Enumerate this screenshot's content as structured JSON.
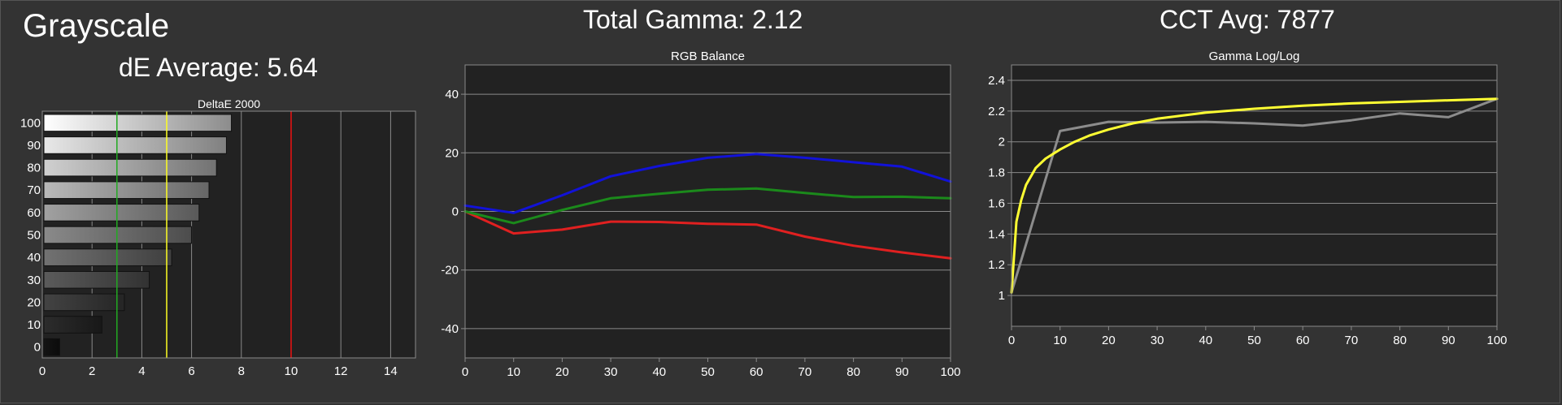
{
  "page": {
    "title": "Grayscale",
    "subtitle": "dE Average: 5.64",
    "gamma_heading": "Total Gamma: 2.12",
    "cct_heading": "CCT Avg: 7877"
  },
  "colors": {
    "background": "#333333",
    "plot_background": "#222222",
    "grid": "#8a8a8a",
    "red": "#e02020",
    "green": "#1b8a1b",
    "blue": "#1212d8",
    "yellow": "#ffff33",
    "gray_line": "#8c8c8c",
    "green_threshold": "#22aa22",
    "yellow_threshold": "#ffff22",
    "red_threshold": "#ee1111"
  },
  "chart_data": [
    {
      "type": "bar",
      "orientation": "horizontal",
      "title": "DeltaE 2000",
      "categories": [
        "100",
        "90",
        "80",
        "70",
        "60",
        "50",
        "40",
        "30",
        "20",
        "10",
        "0"
      ],
      "values": [
        7.6,
        7.4,
        7.0,
        6.7,
        6.3,
        6.0,
        5.2,
        4.3,
        3.3,
        2.4,
        0.7
      ],
      "xlim": [
        0,
        15
      ],
      "xticks": [
        "0",
        "2",
        "4",
        "6",
        "8",
        "10",
        "12",
        "14"
      ],
      "threshold_lines": [
        3,
        5,
        10
      ],
      "grid": true
    },
    {
      "type": "line",
      "title": "RGB Balance",
      "x": [
        0,
        10,
        20,
        30,
        40,
        50,
        60,
        70,
        80,
        90,
        100
      ],
      "series": [
        {
          "color": "red",
          "values": [
            0,
            -7.5,
            -6.2,
            -3.5,
            -3.6,
            -4.2,
            -4.5,
            -8.6,
            -11.7,
            -14.0,
            -16.0
          ]
        },
        {
          "color": "green",
          "values": [
            0,
            -4.0,
            0.5,
            4.5,
            6.0,
            7.4,
            7.8,
            6.3,
            4.9,
            5.0,
            4.5
          ]
        },
        {
          "color": "blue",
          "values": [
            2.0,
            -0.5,
            5.5,
            12.0,
            15.5,
            18.3,
            19.6,
            18.3,
            16.8,
            15.3,
            10.2
          ]
        }
      ],
      "xlim": [
        0,
        100
      ],
      "ylim": [
        -50,
        50
      ],
      "xticks": [
        "0",
        "10",
        "20",
        "30",
        "40",
        "50",
        "60",
        "70",
        "80",
        "90",
        "100"
      ],
      "yticks": [
        "40",
        "20",
        "0",
        "-20",
        "-40"
      ],
      "grid": true
    },
    {
      "type": "line",
      "title": "Gamma Log/Log",
      "x": [
        0,
        10,
        20,
        30,
        40,
        50,
        60,
        70,
        80,
        90,
        100
      ],
      "series": [
        {
          "color": "gray_line",
          "x": [
            0,
            10,
            20,
            30,
            40,
            50,
            60,
            70,
            80,
            90,
            100
          ],
          "values": [
            1.02,
            2.07,
            2.13,
            2.125,
            2.13,
            2.12,
            2.105,
            2.14,
            2.185,
            2.16,
            2.28
          ]
        },
        {
          "color": "yellow",
          "x": [
            0,
            1,
            2,
            3,
            5,
            7,
            10,
            13,
            16,
            20,
            25,
            30,
            40,
            50,
            60,
            70,
            80,
            90,
            100
          ],
          "values": [
            1.02,
            1.48,
            1.62,
            1.72,
            1.83,
            1.89,
            1.95,
            2.0,
            2.04,
            2.08,
            2.12,
            2.15,
            2.19,
            2.215,
            2.235,
            2.25,
            2.26,
            2.27,
            2.28
          ]
        }
      ],
      "xlim": [
        0,
        100
      ],
      "ylim": [
        0.8,
        2.5
      ],
      "xticks": [
        "0",
        "10",
        "20",
        "30",
        "40",
        "50",
        "60",
        "70",
        "80",
        "90",
        "100"
      ],
      "yticks": [
        "2.4",
        "2.2",
        "2",
        "1.8",
        "1.6",
        "1.4",
        "1.2",
        "1"
      ],
      "grid": true
    }
  ]
}
